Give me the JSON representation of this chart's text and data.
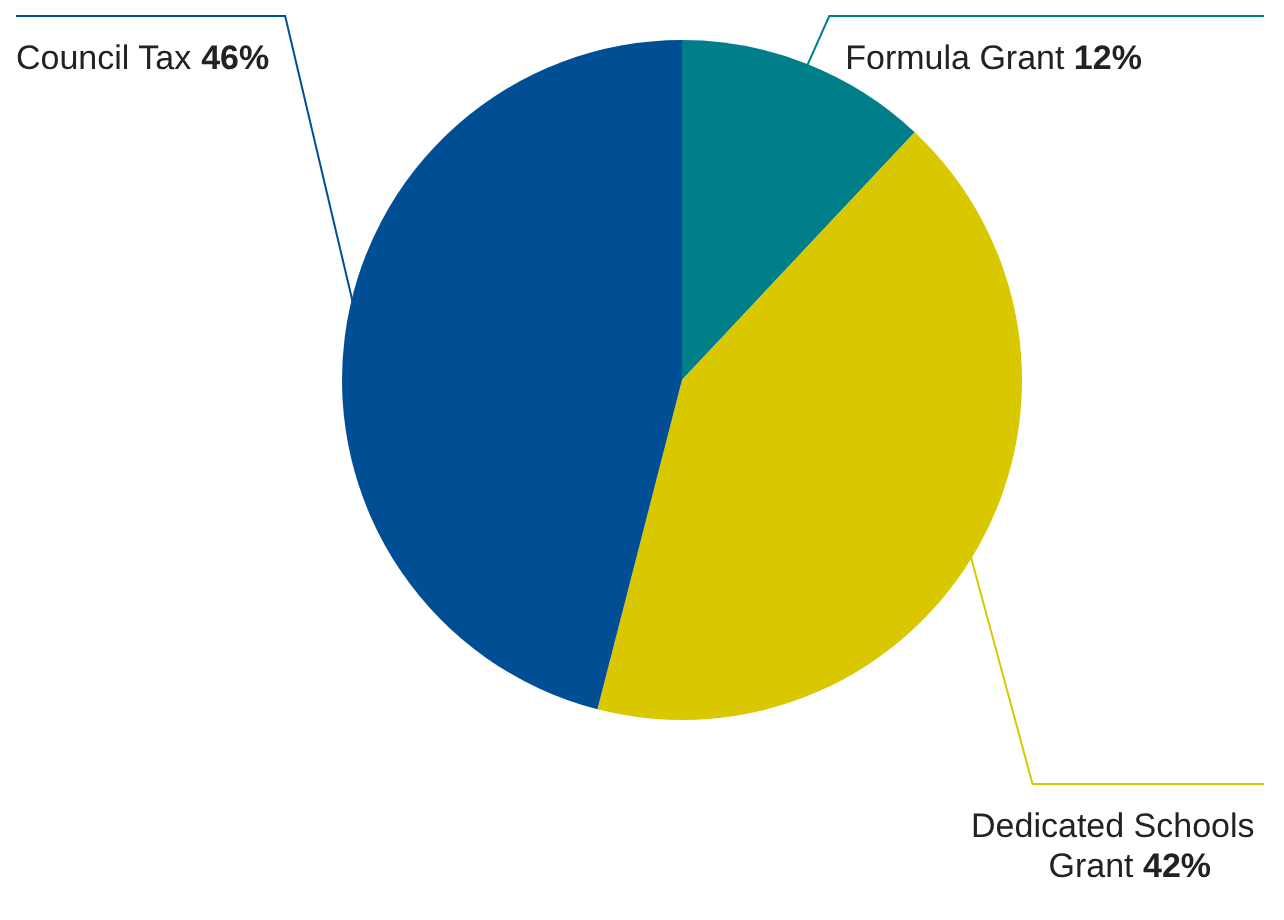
{
  "chart_data": {
    "type": "pie",
    "categories": [
      "Formula Grant",
      "Dedicated Schools Grant",
      "Council Tax"
    ],
    "values": [
      12,
      42,
      46
    ],
    "colors": [
      "#007f8a",
      "#d9c800",
      "#004f95"
    ],
    "value_labels": [
      "12%",
      "42%",
      "46%"
    ],
    "legend": false
  }
}
